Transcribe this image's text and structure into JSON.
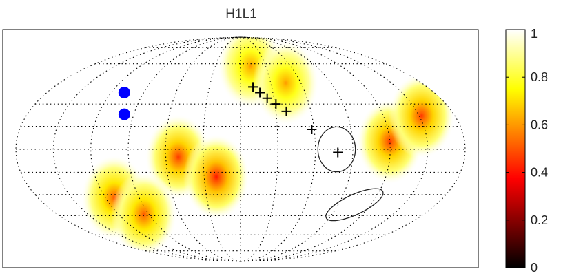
{
  "chart_data": {
    "type": "heatmap",
    "title": "H1L1",
    "projection": "mollweide",
    "grid": true,
    "colormap": "hot",
    "colorbar": {
      "placement": "right",
      "range": [
        0,
        1
      ],
      "ticks": [
        {
          "value": 1,
          "label": "1"
        },
        {
          "value": 0.8,
          "label": "0.8"
        },
        {
          "value": 0.6,
          "label": "0.6"
        },
        {
          "value": 0.4,
          "label": "0.4"
        },
        {
          "value": 0.2,
          "label": "0.2"
        },
        {
          "value": 0,
          "label": "0"
        }
      ]
    },
    "minima": [
      {
        "lon": -50,
        "lat": -5,
        "value": 0.45
      },
      {
        "lon": -20,
        "lat": -18,
        "value": 0.4
      },
      {
        "lon": 120,
        "lat": 5,
        "value": 0.45
      },
      {
        "lon": 152,
        "lat": 22,
        "value": 0.45
      },
      {
        "lon": -112,
        "lat": -32,
        "value": 0.5
      },
      {
        "lon": -95,
        "lat": -44,
        "value": 0.5
      },
      {
        "lon": 12,
        "lat": 58,
        "value": 0.6
      },
      {
        "lon": 45,
        "lat": 45,
        "value": 0.6
      }
    ],
    "blue_points": [
      {
        "lon": -108,
        "lat": 38
      },
      {
        "lon": -98,
        "lat": 23
      }
    ],
    "plus_markers": [
      {
        "lon": 12,
        "lat": 42
      },
      {
        "lon": 18,
        "lat": 38
      },
      {
        "lon": 24,
        "lat": 34
      },
      {
        "lon": 31,
        "lat": 30
      },
      {
        "lon": 39,
        "lat": 25
      },
      {
        "lon": 58,
        "lat": 13
      },
      {
        "lon": 78,
        "lat": -2
      }
    ],
    "contours": [
      {
        "center": {
          "lon": 77,
          "lat": 0
        },
        "rx_deg": 15,
        "ry_deg": 18,
        "rotate_deg": 0
      },
      {
        "center": {
          "lon": 105,
          "lat": -37
        },
        "rx_deg": 25,
        "ry_deg": 8,
        "rotate_deg": -25
      }
    ]
  },
  "colors": {
    "background": "#ffffff",
    "frame": "#000000",
    "grid": "#000000",
    "blue_points": "#0000ff",
    "markers": "#000000"
  }
}
